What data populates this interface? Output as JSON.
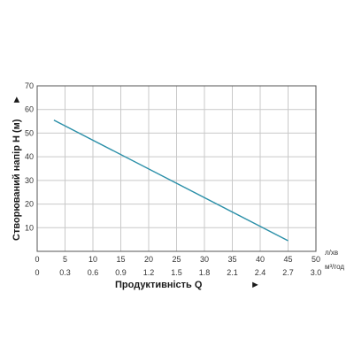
{
  "chart_data": {
    "type": "line",
    "title": "",
    "ylabel": "Створюваний напір Н (м)",
    "xlabel": "Продуктивність  Q",
    "ylim": [
      0,
      70
    ],
    "yticks": [
      "10",
      "20",
      "30",
      "40",
      "50",
      "60",
      "70"
    ],
    "xlim": [
      0,
      50
    ],
    "x_primary": {
      "unit": "л/хв",
      "ticks": [
        "0",
        "5",
        "10",
        "15",
        "20",
        "25",
        "30",
        "35",
        "40",
        "45",
        "50"
      ]
    },
    "x_secondary": {
      "unit": "м³/год",
      "ticks": [
        "0",
        "0.3",
        "0.6",
        "0.9",
        "1.2",
        "1.5",
        "1.8",
        "2.1",
        "2.4",
        "2.7",
        "3.0"
      ]
    },
    "grid": true,
    "series": [
      {
        "color": "#2a8fa8",
        "x": [
          3,
          45
        ],
        "values": [
          55.5,
          4.5
        ]
      }
    ],
    "arrow_glyph": "►"
  }
}
